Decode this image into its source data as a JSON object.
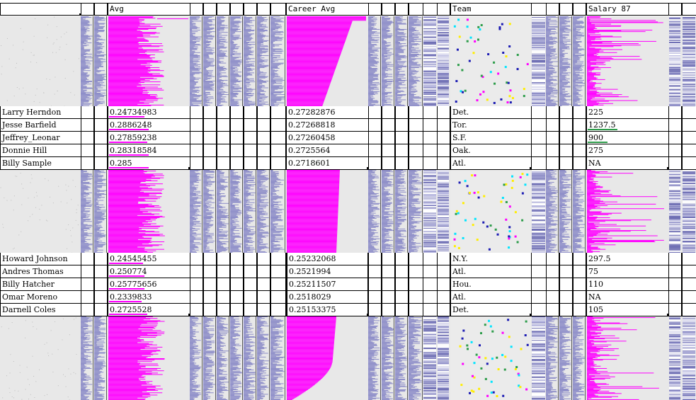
{
  "columns": {
    "avg": "Avg",
    "career_avg": "Career Avg",
    "team": "Team",
    "salary": "Salary 87"
  },
  "groups": [
    {
      "rows": [
        {
          "name": "Larry Herndon",
          "avg": "0.24734983",
          "career": "0.27282876",
          "team": "Det.",
          "salary": "225",
          "avg_frac": 0.25,
          "salary_frac": 0
        },
        {
          "name": "Jesse Barfield",
          "avg": "0.2886248",
          "career": "0.27268818",
          "team": "Tor.",
          "salary": "1237.5",
          "avg_frac": 0.28,
          "salary_frac": 0.3
        },
        {
          "name": "Jeffrey_Leonar",
          "avg": "0.27859238",
          "career": "0.27260458",
          "team": "S.F.",
          "salary": "900",
          "avg_frac": 0.27,
          "salary_frac": 0.2
        },
        {
          "name": "Donnie Hill",
          "avg": "0.28318584",
          "career": "0.2725564",
          "team": "Oak.",
          "salary": "275",
          "avg_frac": 0.28,
          "salary_frac": 0
        },
        {
          "name": "Billy Sample",
          "avg": "0.285",
          "career": "0.2718601",
          "team": "Atl.",
          "salary": "NA",
          "avg_frac": 0.28,
          "salary_frac": 0
        }
      ]
    },
    {
      "rows": [
        {
          "name": "Howard Johnson",
          "avg": "0.24545455",
          "career": "0.25232068",
          "team": "N.Y.",
          "salary": "297.5",
          "avg_frac": 0.24,
          "salary_frac": 0
        },
        {
          "name": "Andres Thomas",
          "avg": "0.250774",
          "career": "0.2521994",
          "team": "Atl.",
          "salary": "75",
          "avg_frac": 0.25,
          "salary_frac": 0
        },
        {
          "name": "Billy Hatcher",
          "avg": "0.25775656",
          "career": "0.25211507",
          "team": "Hou.",
          "salary": "110",
          "avg_frac": 0.25,
          "salary_frac": 0
        },
        {
          "name": "Omar Moreno",
          "avg": "0.2339833",
          "career": "0.2518029",
          "team": "Atl.",
          "salary": "NA",
          "avg_frac": 0.23,
          "salary_frac": 0
        },
        {
          "name": "Darnell Coles",
          "avg": "0.2725528",
          "career": "0.25153375",
          "team": "Det.",
          "salary": "105",
          "avg_frac": 0.27,
          "salary_frac": 0
        }
      ]
    }
  ],
  "colors": {
    "magenta": "#ff00ff",
    "lavender": "#8c8cc8",
    "grey": "#e6e6e6",
    "green": "#2e9d4b"
  }
}
